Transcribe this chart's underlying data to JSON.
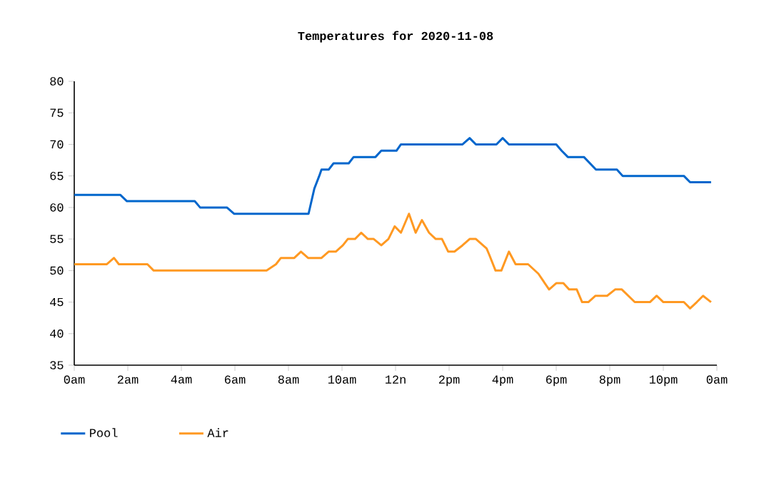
{
  "chart_data": {
    "type": "line",
    "title": "Temperatures for 2020-11-08",
    "series": [
      {
        "name": "Pool",
        "color": "#0066cc",
        "x": [
          "2020-11-08T00:00",
          "2020-11-08T01:43",
          "2020-11-08T01:58",
          "2020-11-08T04:30",
          "2020-11-08T04:42",
          "2020-11-08T05:42",
          "2020-11-08T05:58",
          "2020-11-08T08:45",
          "2020-11-08T08:58",
          "2020-11-08T09:09",
          "2020-11-08T09:14",
          "2020-11-08T09:30",
          "2020-11-08T09:41",
          "2020-11-08T10:15",
          "2020-11-08T10:26",
          "2020-11-08T11:15",
          "2020-11-08T11:28",
          "2020-11-08T12:02",
          "2020-11-08T12:12",
          "2020-11-08T14:30",
          "2020-11-08T14:46",
          "2020-11-08T15:00",
          "2020-11-08T15:46",
          "2020-11-08T16:00",
          "2020-11-08T16:14",
          "2020-11-08T18:00",
          "2020-11-08T18:12",
          "2020-11-08T18:26",
          "2020-11-08T19:02",
          "2020-11-08T19:29",
          "2020-11-08T20:16",
          "2020-11-08T20:29",
          "2020-11-08T22:46",
          "2020-11-08T23:00",
          "2020-11-08T23:47"
        ],
        "values": [
          62,
          62,
          61,
          61,
          60,
          60,
          59,
          59,
          63,
          65,
          66,
          66,
          67,
          67,
          68,
          68,
          69,
          69,
          70,
          70,
          71,
          70,
          70,
          71,
          70,
          70,
          69,
          68,
          68,
          66,
          66,
          65,
          65,
          64,
          64
        ]
      },
      {
        "name": "Air",
        "color": "#ff9922",
        "x": [
          "2020-11-08T00:00",
          "2020-11-08T01:13",
          "2020-11-08T01:29",
          "2020-11-08T01:40",
          "2020-11-08T02:44",
          "2020-11-08T02:58",
          "2020-11-08T07:11",
          "2020-11-08T07:32",
          "2020-11-08T07:43",
          "2020-11-08T08:13",
          "2020-11-08T08:28",
          "2020-11-08T08:44",
          "2020-11-08T09:14",
          "2020-11-08T09:30",
          "2020-11-08T09:46",
          "2020-11-08T10:02",
          "2020-11-08T10:13",
          "2020-11-08T10:29",
          "2020-11-08T10:43",
          "2020-11-08T10:58",
          "2020-11-08T11:11",
          "2020-11-08T11:28",
          "2020-11-08T11:44",
          "2020-11-08T11:58",
          "2020-11-08T12:12",
          "2020-11-08T12:30",
          "2020-11-08T12:45",
          "2020-11-08T12:59",
          "2020-11-08T13:15",
          "2020-11-08T13:30",
          "2020-11-08T13:44",
          "2020-11-08T13:58",
          "2020-11-08T14:12",
          "2020-11-08T14:30",
          "2020-11-08T14:46",
          "2020-11-08T15:00",
          "2020-11-08T15:24",
          "2020-11-08T15:30",
          "2020-11-08T15:44",
          "2020-11-08T15:57",
          "2020-11-08T16:14",
          "2020-11-08T16:29",
          "2020-11-08T16:57",
          "2020-11-08T17:20",
          "2020-11-08T17:44",
          "2020-11-08T18:00",
          "2020-11-08T18:16",
          "2020-11-08T18:29",
          "2020-11-08T18:46",
          "2020-11-08T18:58",
          "2020-11-08T19:12",
          "2020-11-08T19:28",
          "2020-11-08T19:54",
          "2020-11-08T20:12",
          "2020-11-08T20:27",
          "2020-11-08T20:56",
          "2020-11-08T21:30",
          "2020-11-08T21:45",
          "2020-11-08T22:00",
          "2020-11-08T22:46",
          "2020-11-08T23:00",
          "2020-11-08T23:15",
          "2020-11-08T23:29",
          "2020-11-08T23:47"
        ],
        "values": [
          51,
          51,
          52,
          51,
          51,
          50,
          50,
          51,
          52,
          52,
          53,
          52,
          52,
          53,
          53,
          54,
          55,
          55,
          56,
          55,
          55,
          54,
          55,
          57,
          56,
          59,
          56,
          58,
          56,
          55,
          55,
          53,
          53,
          54,
          55,
          55,
          53.5,
          52.5,
          50,
          50,
          53,
          51,
          51,
          49.5,
          47,
          48,
          48,
          47,
          47,
          45,
          45,
          46,
          46,
          47,
          47,
          45,
          45,
          46,
          45,
          45,
          44,
          45,
          46,
          45
        ]
      }
    ],
    "xlim": [
      "2020-11-08T00:00",
      "2020-11-09T00:00"
    ],
    "ylim": [
      35,
      80
    ],
    "xticks": [
      {
        "value": "2020-11-08T00:00",
        "label": "0am"
      },
      {
        "value": "2020-11-08T02:00",
        "label": "2am"
      },
      {
        "value": "2020-11-08T04:00",
        "label": "4am"
      },
      {
        "value": "2020-11-08T06:00",
        "label": "6am"
      },
      {
        "value": "2020-11-08T08:00",
        "label": "8am"
      },
      {
        "value": "2020-11-08T10:00",
        "label": "10am"
      },
      {
        "value": "2020-11-08T12:00",
        "label": "12n"
      },
      {
        "value": "2020-11-08T14:00",
        "label": "2pm"
      },
      {
        "value": "2020-11-08T16:00",
        "label": "4pm"
      },
      {
        "value": "2020-11-08T18:00",
        "label": "6pm"
      },
      {
        "value": "2020-11-08T20:00",
        "label": "8pm"
      },
      {
        "value": "2020-11-08T22:00",
        "label": "10pm"
      },
      {
        "value": "2020-11-09T00:00",
        "label": "0am"
      }
    ],
    "yticks": [
      35,
      40,
      45,
      50,
      55,
      60,
      65,
      70,
      75,
      80
    ],
    "grid": false,
    "legend": "bottom left",
    "marker": "none",
    "line_style": "solid"
  }
}
